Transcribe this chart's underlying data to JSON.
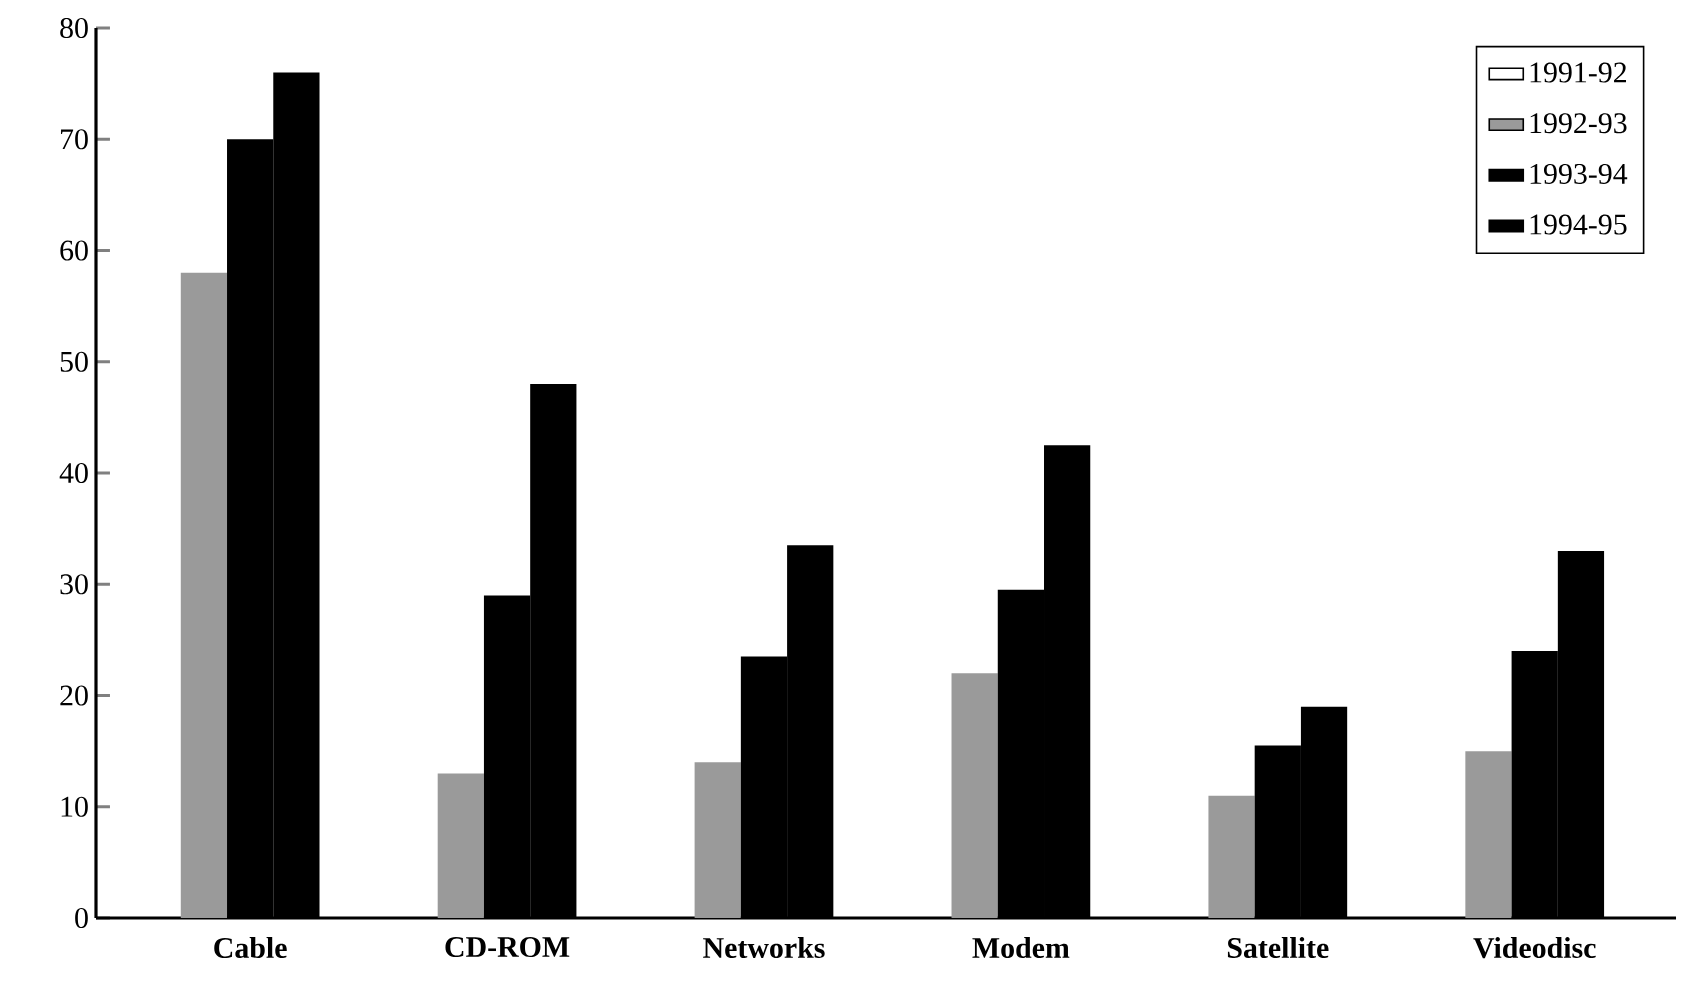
{
  "chart_data": {
    "type": "bar",
    "categories": [
      "Cable",
      "CD-ROM",
      "Networks",
      "Modem",
      "Satellite",
      "Videodisc"
    ],
    "series": [
      {
        "name": "1991-92",
        "color": "#ffffff",
        "values": [
          null,
          null,
          null,
          null,
          null,
          null
        ]
      },
      {
        "name": "1992-93",
        "color": "#9a9a9a",
        "values": [
          58,
          13,
          14,
          22,
          11,
          15
        ]
      },
      {
        "name": "1993-94",
        "color": "#000000",
        "values": [
          70,
          29,
          23.5,
          29.5,
          15.5,
          24
        ]
      },
      {
        "name": "1994-95",
        "color": "#000000",
        "values": [
          76,
          48,
          33.5,
          42.5,
          19,
          33
        ]
      }
    ],
    "ylim": [
      0,
      80
    ],
    "yticks": [
      0,
      10,
      20,
      30,
      40,
      50,
      60,
      70,
      80
    ],
    "grid": false,
    "legend": "top right"
  }
}
